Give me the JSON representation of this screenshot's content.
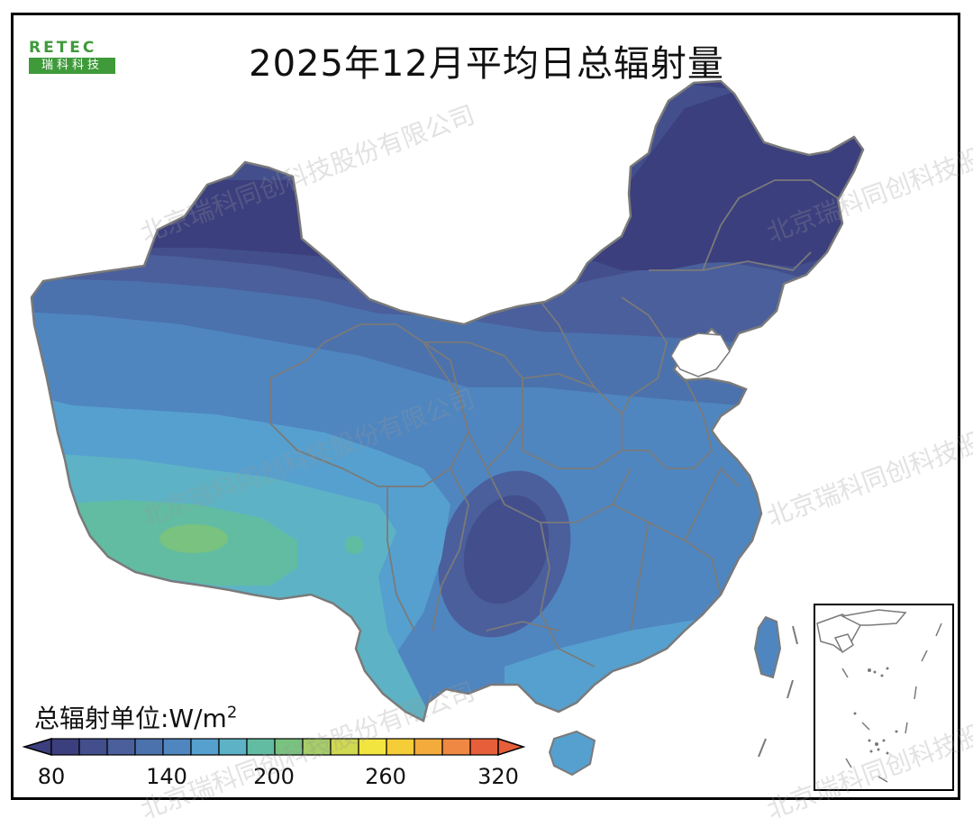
{
  "title": "2025年12月平均日总辐射量",
  "logo": {
    "text_top": "RETEC",
    "text_bottom": "瑞科科技"
  },
  "watermark": "北京瑞科同创科技股份有限公司",
  "legend": {
    "label": "总辐射单位:W/m",
    "unit_sup": "2",
    "ticks": [
      "80",
      "140",
      "200",
      "260",
      "320"
    ],
    "min": 80,
    "max": 320,
    "colors": [
      "#3b3f7e",
      "#434f8c",
      "#4a5f9c",
      "#4b72ad",
      "#4f86c0",
      "#56a0cf",
      "#5db3c5",
      "#62bca2",
      "#79c27f",
      "#a6cd67",
      "#d0d94f",
      "#f3e53f",
      "#f5cd37",
      "#f3ab3c",
      "#ef8842",
      "#e65f3a"
    ]
  },
  "colors": {
    "border": "#7a7a7a",
    "frame": "#000000"
  }
}
